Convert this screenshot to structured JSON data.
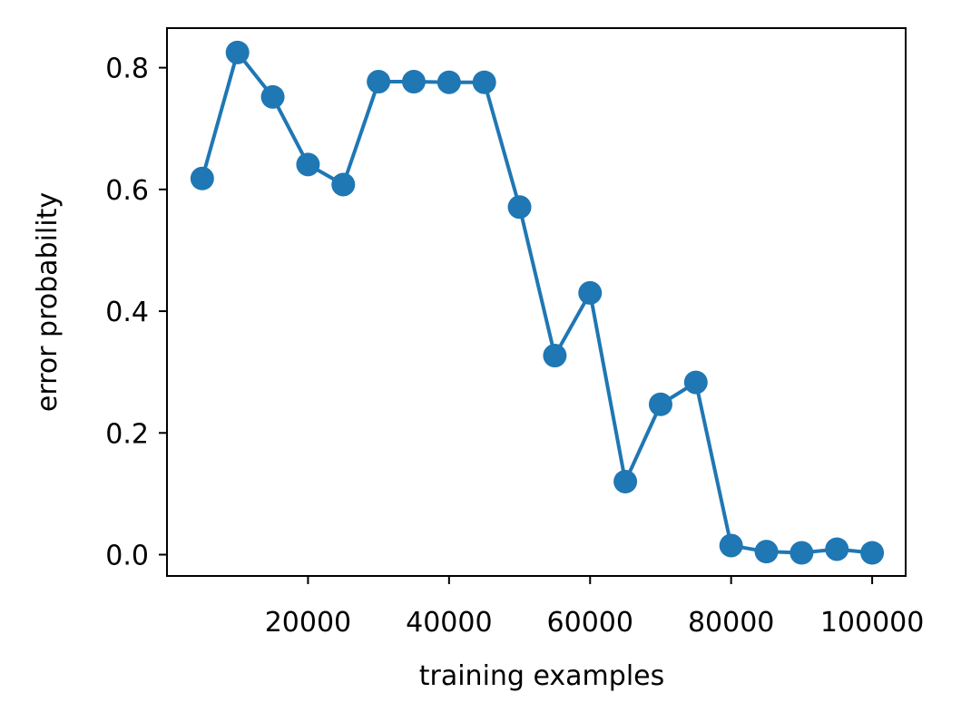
{
  "chart_data": {
    "type": "line",
    "title": "",
    "xlabel": "training examples",
    "ylabel": "error probability",
    "xlim": [
      0,
      104750
    ],
    "ylim": [
      -0.035,
      0.865
    ],
    "x_ticks": [
      20000,
      40000,
      60000,
      80000,
      100000
    ],
    "x_tick_labels": [
      "20000",
      "40000",
      "60000",
      "80000",
      "100000"
    ],
    "y_ticks": [
      0.0,
      0.2,
      0.4,
      0.6,
      0.8
    ],
    "y_tick_labels": [
      "0.0",
      "0.2",
      "0.4",
      "0.6",
      "0.8"
    ],
    "grid": false,
    "legend": "none",
    "series": [
      {
        "color": "#1f77b4",
        "marker": "circle",
        "x": [
          5000,
          10000,
          15000,
          20000,
          25000,
          30000,
          35000,
          40000,
          45000,
          50000,
          55000,
          60000,
          65000,
          70000,
          75000,
          80000,
          85000,
          90000,
          95000,
          100000
        ],
        "y": [
          0.618,
          0.825,
          0.752,
          0.641,
          0.608,
          0.777,
          0.777,
          0.776,
          0.776,
          0.571,
          0.327,
          0.43,
          0.12,
          0.247,
          0.283,
          0.015,
          0.005,
          0.003,
          0.009,
          0.003
        ]
      }
    ]
  }
}
